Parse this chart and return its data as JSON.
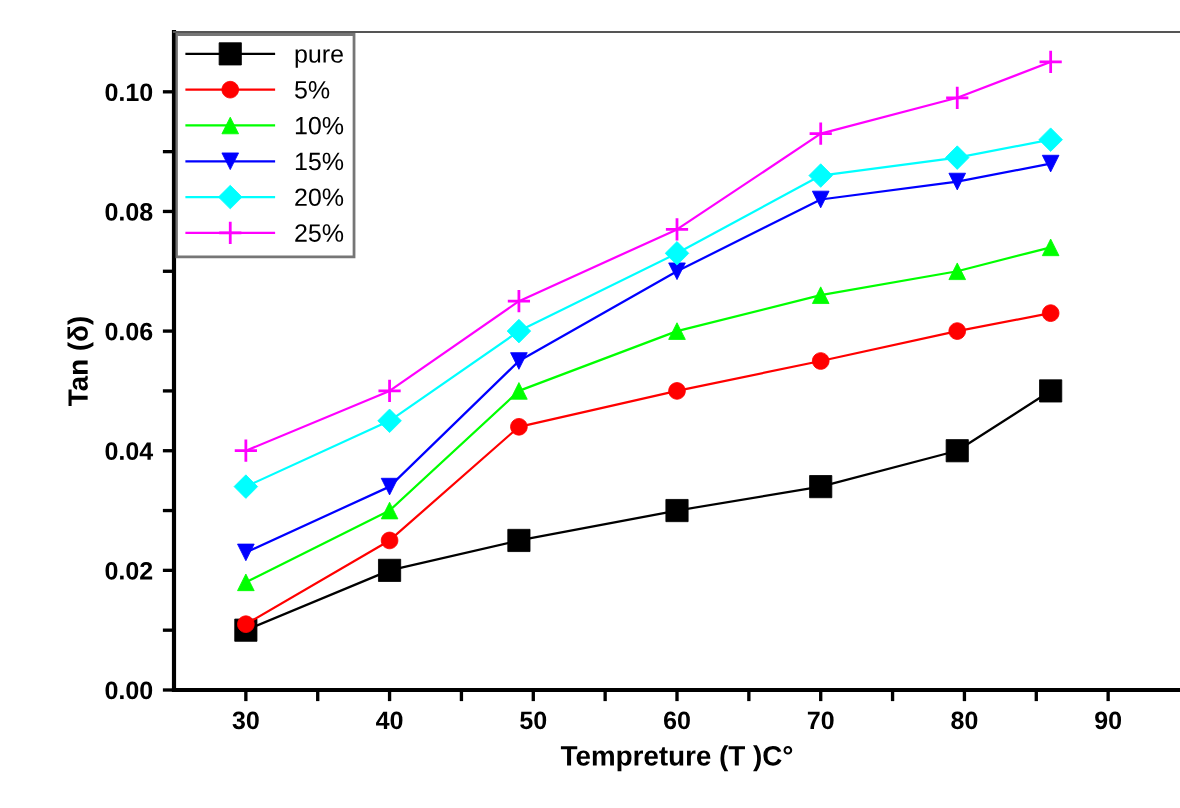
{
  "chart_data": {
    "type": "line",
    "xlabel": "Tempreture (T )C°",
    "ylabel": "Tan (δ)",
    "x": [
      30,
      40,
      49,
      60,
      70,
      79.5,
      86
    ],
    "series": [
      {
        "name": "pure",
        "color": "#000000",
        "marker": "square",
        "values": [
          0.01,
          0.02,
          0.025,
          0.03,
          0.034,
          0.04,
          0.05
        ]
      },
      {
        "name": "5%",
        "color": "#ff0000",
        "marker": "circle",
        "values": [
          0.011,
          0.025,
          0.044,
          0.05,
          0.055,
          0.06,
          0.063
        ]
      },
      {
        "name": "10%",
        "color": "#00ff00",
        "marker": "triangle",
        "values": [
          0.018,
          0.03,
          0.05,
          0.06,
          0.066,
          0.07,
          0.074
        ]
      },
      {
        "name": "15%",
        "color": "#0000ff",
        "marker": "triangle_down",
        "values": [
          0.023,
          0.034,
          0.055,
          0.07,
          0.082,
          0.085,
          0.088
        ]
      },
      {
        "name": "20%",
        "color": "#00ffff",
        "marker": "diamond",
        "values": [
          0.034,
          0.045,
          0.06,
          0.073,
          0.086,
          0.089,
          0.092
        ]
      },
      {
        "name": "25%",
        "color": "#ff00ff",
        "marker": "cross",
        "values": [
          0.04,
          0.05,
          0.065,
          0.077,
          0.093,
          0.099,
          0.105
        ]
      }
    ],
    "xlim": [
      25,
      95
    ],
    "ylim": [
      0,
      0.11
    ],
    "xticks": [
      30,
      {
        "value": 35,
        "label": null
      },
      40,
      {
        "value": 45,
        "label": null
      },
      50,
      {
        "value": 55,
        "label": null
      },
      60,
      {
        "value": 65,
        "label": null
      },
      70,
      {
        "value": 75,
        "label": null
      },
      80,
      {
        "value": 85,
        "label": null
      },
      90
    ],
    "yticks": [
      {
        "value": 0,
        "label": "0.00"
      },
      {
        "value": 0.01,
        "label": null
      },
      {
        "value": 0.02,
        "label": "0.02"
      },
      {
        "value": 0.03,
        "label": null
      },
      {
        "value": 0.04,
        "label": "0.04"
      },
      {
        "value": 0.05,
        "label": null
      },
      {
        "value": 0.06,
        "label": "0.06"
      },
      {
        "value": 0.07,
        "label": null
      },
      {
        "value": 0.08,
        "label": "0.08"
      },
      {
        "value": 0.09,
        "label": null
      },
      {
        "value": 0.1,
        "label": "0.10"
      }
    ],
    "legend": "top left",
    "grid": false,
    "line_style": "solid"
  }
}
